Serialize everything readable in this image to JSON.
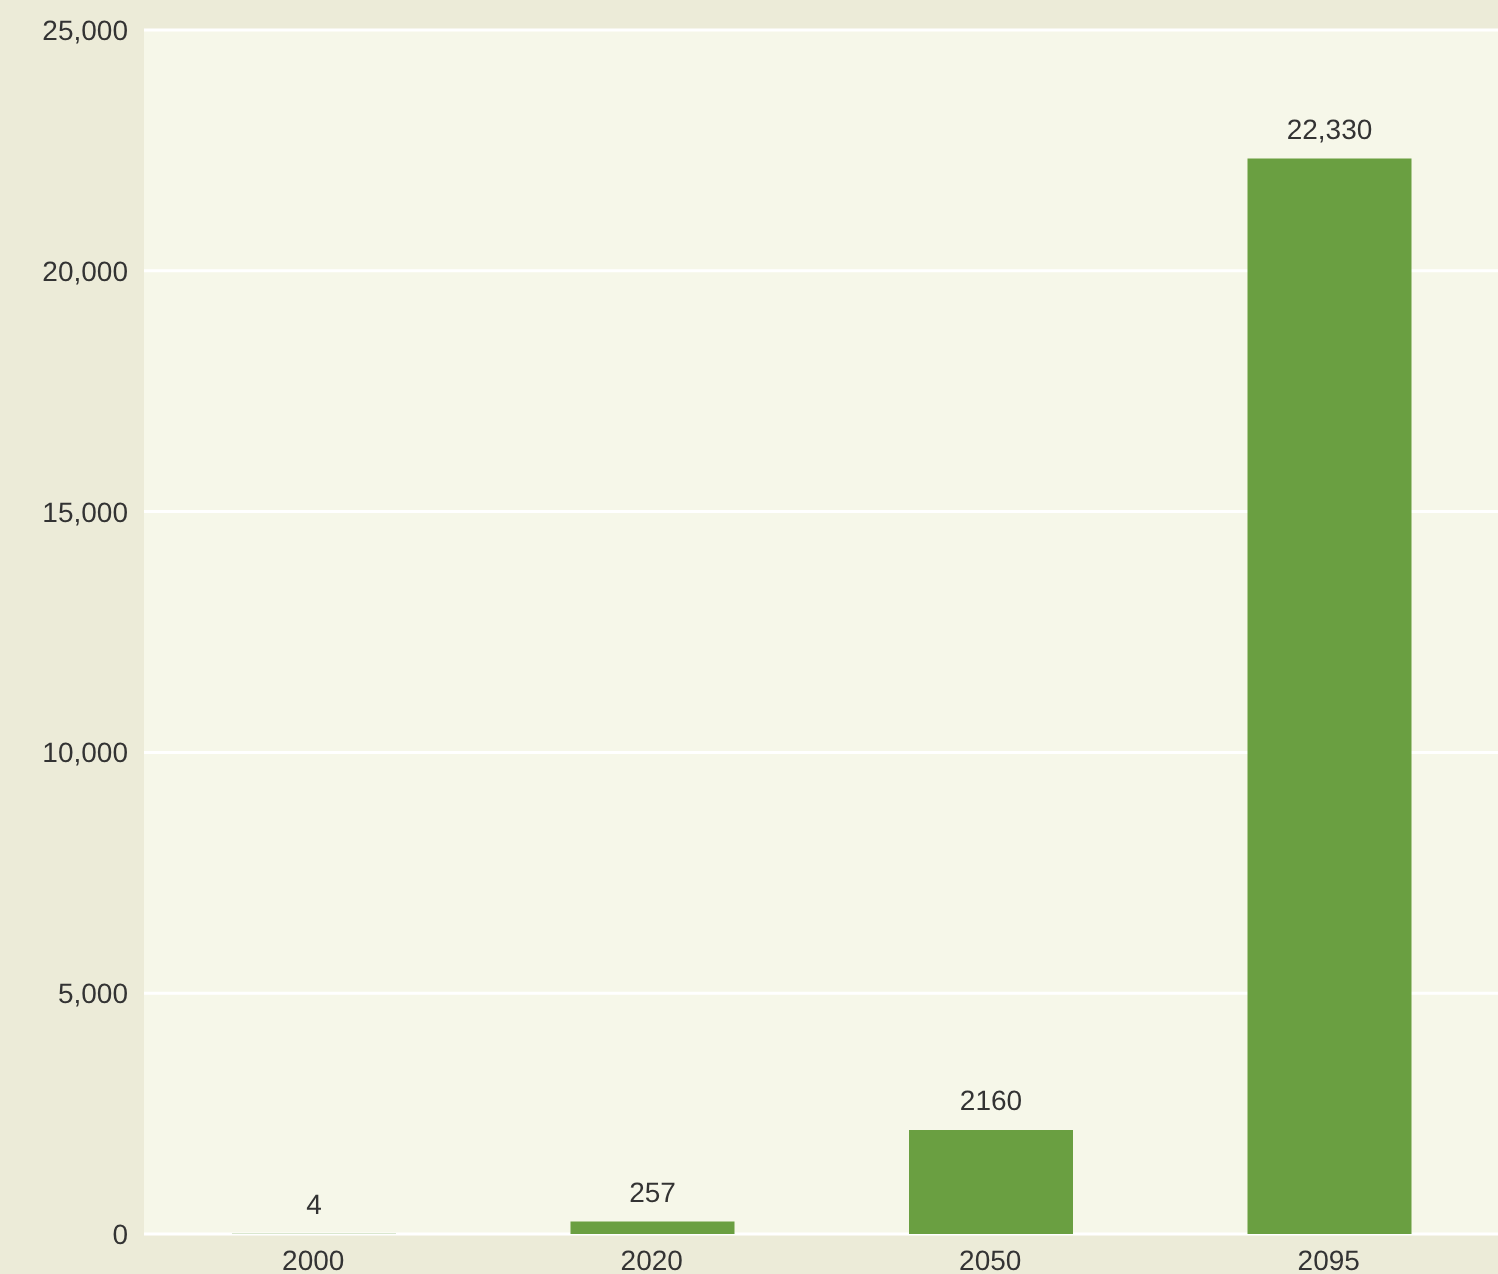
{
  "chart_data": {
    "type": "bar",
    "categories": [
      "2000",
      "2020",
      "2050",
      "2095"
    ],
    "values": [
      4,
      257,
      2160,
      22330
    ],
    "value_labels": [
      "4",
      "257",
      "2160",
      "22,330"
    ],
    "color": "#6a9f41",
    "ylim": [
      0,
      25000
    ],
    "yticks": [
      0,
      {
        "value": 5000,
        "label": "5,000"
      },
      {
        "value": 10000,
        "label": "10,000"
      },
      {
        "value": 15000,
        "label": "15,000"
      },
      {
        "value": 20000,
        "label": "20,000"
      },
      {
        "value": 25000,
        "label": "25,000"
      }
    ],
    "grid": "y"
  }
}
